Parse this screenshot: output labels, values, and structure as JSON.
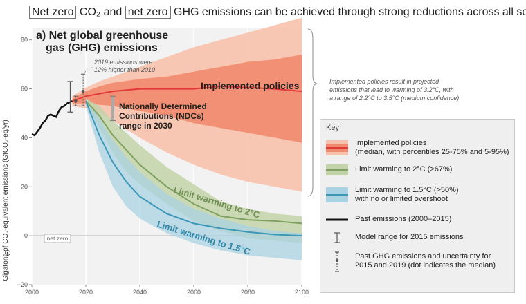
{
  "header": {
    "part1": "Net zero",
    "part2": "CO₂ and",
    "part3": "net zero",
    "part4": "GHG emissions can be achieved through strong reductions across all sectors"
  },
  "panel": {
    "title_line1": "a) Net global greenhouse",
    "title_line2": "gas (GHG) emissions"
  },
  "annotations": {
    "emissions_2019_line1": "2019 emissions were",
    "emissions_2019_line2": "12% higher than 2010",
    "implemented_label": "Implemented policies",
    "ndc_line1": "Nationally Determined",
    "ndc_line2": "Contributions (NDCs)",
    "ndc_line3": "range in 2030",
    "limit2": "Limit warming to 2°C",
    "limit15": "Limit warming to 1.5°C",
    "netzero": "net zero",
    "brace_note": [
      "Implemented policies result in projected",
      "emissions that lead to warming of 3.2°C, with",
      "a range of 2.2°C to 3.5°C (medium confidence)"
    ]
  },
  "key": {
    "title": "Key",
    "items": [
      {
        "line1": "Implemented policies",
        "line2": "(median, with percentiles 25-75% and 5-95%)"
      },
      {
        "line1": "Limit warming to 2°C (>67%)"
      },
      {
        "line1": "Limit warming to 1.5°C (>50%)",
        "line2": "with no or limited overshoot"
      },
      {
        "line1": "Past emissions (2000–2015)"
      },
      {
        "line1": "Model range for 2015 emissions"
      },
      {
        "line1": "Past GHG emissions and uncertainty for",
        "line2": "2015 and 2019 (dot indicates the median)"
      }
    ]
  },
  "colors": {
    "implemented_median": "#e0393a",
    "implemented_inner": "#f08a6e",
    "implemented_outer": "#f7c2ad",
    "c2_line": "#7ea15f",
    "c2_band": "#c3d3a9",
    "c15_line": "#3a97b8",
    "c15_band": "#a9d3e2",
    "past": "#111111"
  },
  "chart_data": {
    "type": "area",
    "ylabel": "Gigatons of CO₂-equivalent emissions (GtCO₂-eq/yr)",
    "xlim": [
      2000,
      2100
    ],
    "ylim": [
      -20,
      85
    ],
    "xticks": [
      2000,
      2020,
      2040,
      2060,
      2080,
      2100
    ],
    "yticks": [
      -20,
      0,
      20,
      40,
      60,
      80
    ],
    "grid": "vertical",
    "past_emissions": {
      "name": "Past emissions (2000–2015)",
      "x": [
        2000,
        2001,
        2002,
        2003,
        2004,
        2005,
        2006,
        2007,
        2008,
        2009,
        2010,
        2011,
        2012,
        2013,
        2014,
        2015
      ],
      "y": [
        41.5,
        41,
        42.5,
        44,
        46,
        47,
        49,
        49.5,
        49,
        48.5,
        51,
        52.5,
        53,
        54,
        54.5,
        55
      ]
    },
    "model_range_2015": [
      50.5,
      63
    ],
    "past_2015": {
      "median": 55,
      "range": [
        53,
        57
      ]
    },
    "past_2019": {
      "median": 59,
      "range": [
        53,
        66
      ]
    },
    "ndc_2030": [
      47,
      57
    ],
    "series": [
      {
        "name": "Implemented policies",
        "x": [
          2015,
          2020,
          2025,
          2030,
          2040,
          2050,
          2060,
          2070,
          2080,
          2090,
          2100
        ],
        "median": [
          55,
          57,
          58,
          59,
          60,
          60,
          60,
          61,
          60.5,
          60,
          59
        ],
        "p25": [
          54,
          54,
          53.5,
          53,
          51,
          49,
          46,
          44,
          42,
          40,
          38
        ],
        "p75": [
          56,
          59,
          61,
          62.5,
          64,
          65,
          67,
          69,
          71,
          72,
          74
        ],
        "p5": [
          53,
          52,
          50,
          47,
          40,
          34,
          29,
          25,
          22,
          20,
          18
        ],
        "p95": [
          57,
          60.5,
          63,
          65,
          69,
          73,
          77,
          80,
          83,
          86,
          89
        ]
      },
      {
        "name": "Limit warming to 2°C (>67%)",
        "x": [
          2020,
          2025,
          2030,
          2035,
          2040,
          2050,
          2060,
          2070,
          2080,
          2090,
          2100
        ],
        "median": [
          55,
          49,
          41,
          35,
          29,
          20,
          13,
          8,
          6.5,
          6,
          5
        ],
        "low": [
          54,
          44,
          34,
          26,
          21,
          13,
          6,
          2,
          -1,
          -2,
          -3
        ],
        "high": [
          56,
          53,
          47,
          42,
          37,
          28,
          21,
          14,
          11,
          9,
          8
        ]
      },
      {
        "name": "Limit warming to 1.5°C (>50%)",
        "x": [
          2020,
          2025,
          2030,
          2035,
          2040,
          2050,
          2060,
          2070,
          2080,
          2090,
          2100
        ],
        "median": [
          55,
          41,
          30,
          22,
          16,
          9,
          5,
          3,
          1.5,
          0.5,
          0
        ],
        "low": [
          53,
          34,
          20,
          12,
          7,
          1,
          -3,
          -6,
          -8,
          -9,
          -10
        ],
        "high": [
          56,
          48,
          39,
          32,
          26,
          17,
          11,
          7,
          4,
          2,
          1
        ]
      }
    ]
  }
}
